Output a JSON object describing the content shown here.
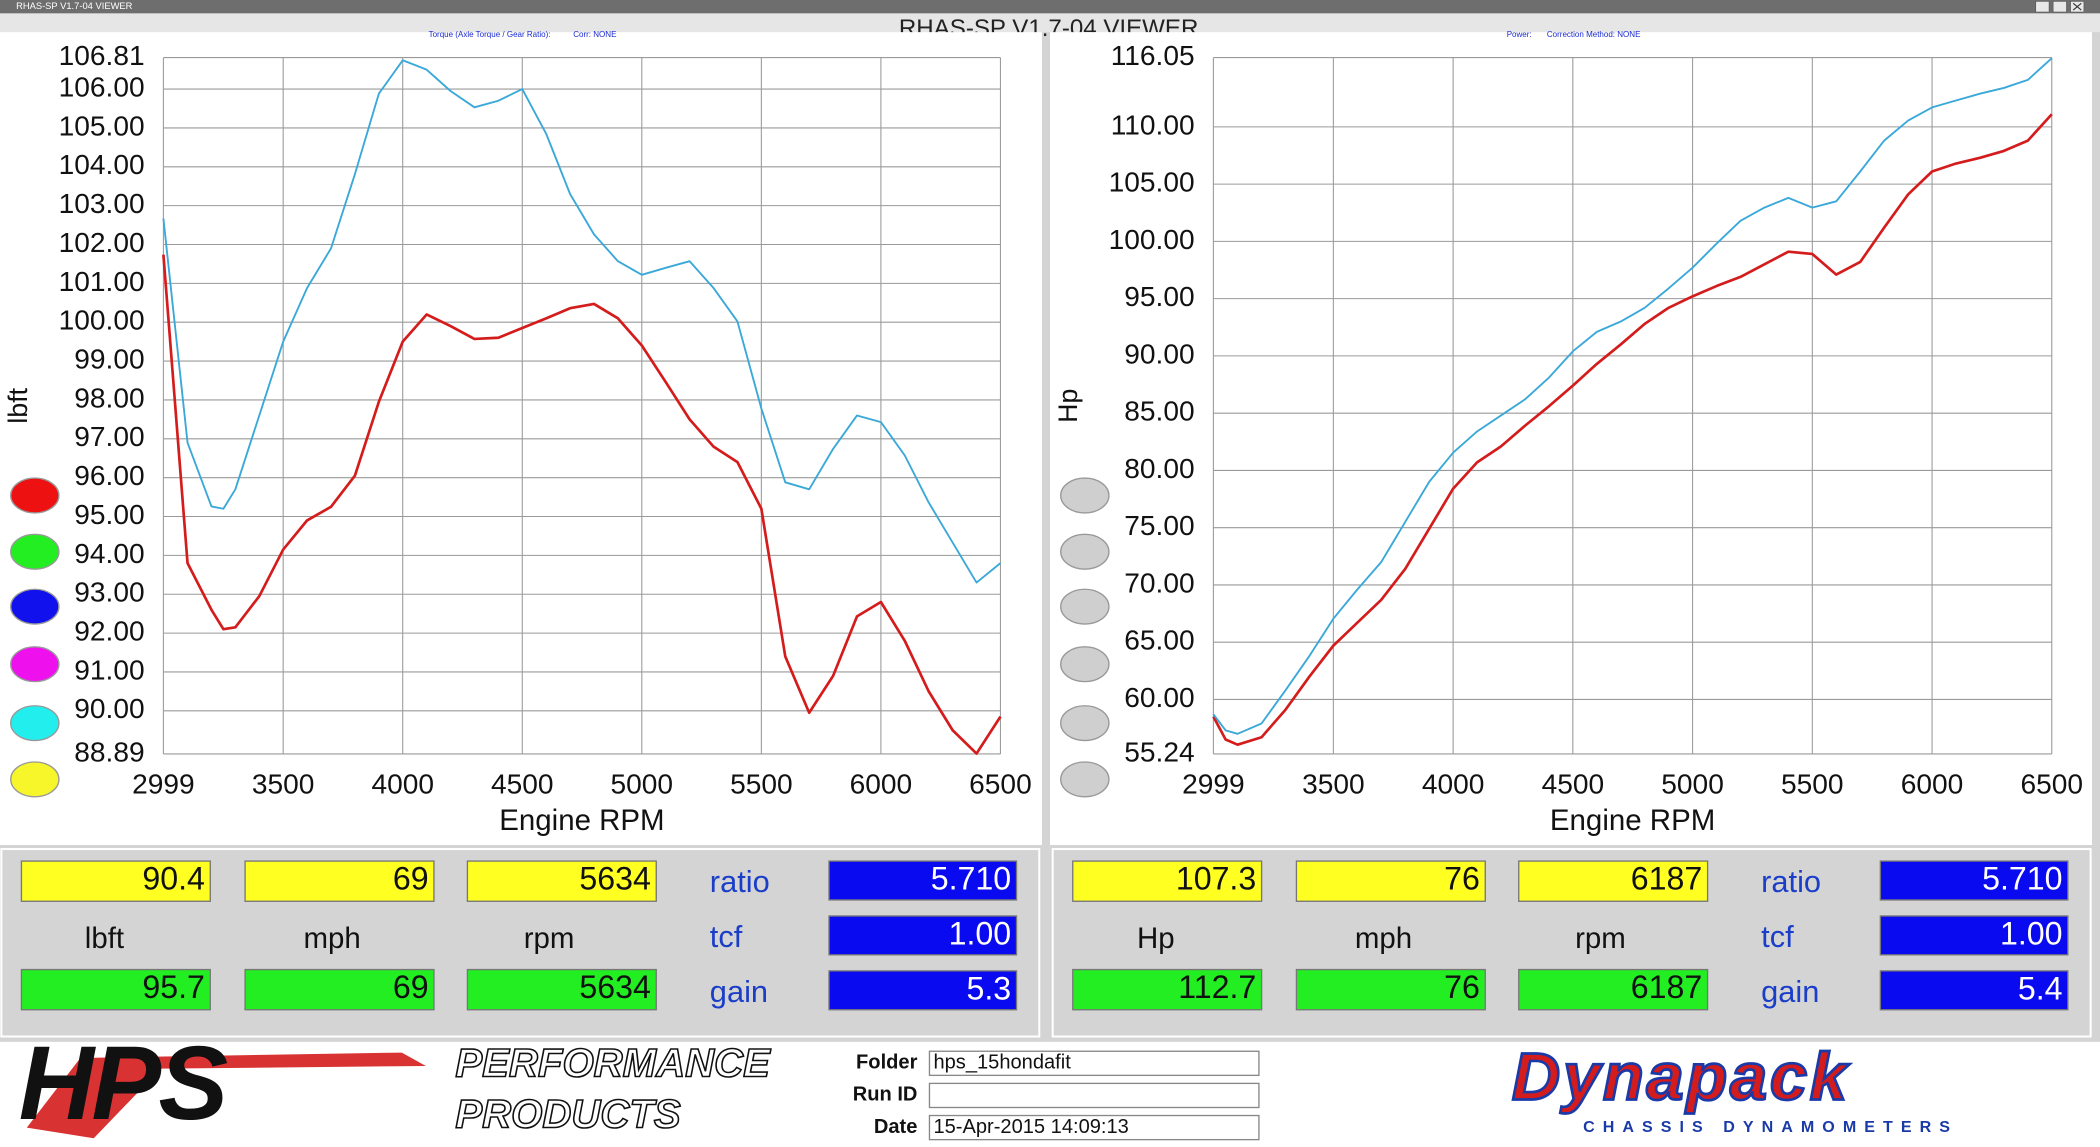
{
  "window": {
    "title": "RHAS-SP V1.7-04  VIEWER"
  },
  "app_title": "RHAS-SP V1.7-04  VIEWER",
  "chart_data": [
    {
      "type": "line",
      "header": [
        "Torque (Axle Torque / Gear Ratio):",
        "Corr: NONE"
      ],
      "y_label": "lbft",
      "x_label": "Engine RPM",
      "x": [
        2999,
        3100,
        3200,
        3250,
        3300,
        3400,
        3500,
        3600,
        3700,
        3800,
        3900,
        4000,
        4100,
        4200,
        4300,
        4400,
        4500,
        4600,
        4700,
        4800,
        4900,
        5000,
        5100,
        5200,
        5300,
        5400,
        5500,
        5600,
        5700,
        5800,
        5900,
        6000,
        6100,
        6200,
        6300,
        6400,
        6500
      ],
      "series": [
        {
          "color": "#d41c1c",
          "values": [
            101.74,
            93.8,
            92.6,
            92.1,
            92.15,
            92.95,
            94.15,
            94.9,
            95.25,
            96.05,
            97.95,
            99.5,
            100.2,
            99.9,
            99.57,
            99.6,
            99.85,
            100.1,
            100.36,
            100.47,
            100.1,
            99.4,
            98.46,
            97.5,
            96.8,
            96.4,
            95.2,
            91.4,
            89.95,
            90.9,
            92.43,
            92.8,
            91.8,
            90.5,
            89.5,
            88.9,
            89.85
          ]
        },
        {
          "color": "#3aa8d8",
          "values": [
            102.67,
            96.9,
            95.26,
            95.2,
            95.7,
            97.6,
            99.5,
            100.88,
            101.9,
            103.81,
            105.88,
            106.74,
            106.5,
            105.95,
            105.53,
            105.7,
            106.0,
            104.85,
            103.3,
            102.26,
            101.57,
            101.22,
            101.4,
            101.57,
            100.88,
            100.02,
            97.78,
            95.88,
            95.7,
            96.74,
            97.6,
            97.43,
            96.57,
            95.36,
            94.33,
            93.3,
            93.8
          ]
        }
      ],
      "xlim": [
        2999,
        6500
      ],
      "xticks": [
        2999,
        3500,
        4000,
        4500,
        5000,
        5500,
        6000,
        6500
      ],
      "ylim": [
        88.89,
        106.81
      ],
      "yticks": [
        88.89,
        {
          "value": 90,
          "label": "90.00"
        },
        {
          "value": 91,
          "label": "91.00"
        },
        {
          "value": 92,
          "label": "92.00"
        },
        {
          "value": 93,
          "label": "93.00"
        },
        {
          "value": 94,
          "label": "94.00"
        },
        {
          "value": 95,
          "label": "95.00"
        },
        {
          "value": 96,
          "label": "96.00"
        },
        {
          "value": 97,
          "label": "97.00"
        },
        {
          "value": 98,
          "label": "98.00"
        },
        {
          "value": 99,
          "label": "99.00"
        },
        {
          "value": 100,
          "label": "100.00"
        },
        {
          "value": 101,
          "label": "101.00"
        },
        {
          "value": 102,
          "label": "102.00"
        },
        {
          "value": 103,
          "label": "103.00"
        },
        {
          "value": 104,
          "label": "104.00"
        },
        {
          "value": 105,
          "label": "105.00"
        },
        {
          "value": 106,
          "label": "106.00"
        },
        106.81
      ],
      "grid": true
    },
    {
      "type": "line",
      "header": [
        "Power:",
        "Correction Method: NONE"
      ],
      "y_label": "Hp",
      "x_label": "Engine RPM",
      "x": [
        2999,
        3050,
        3100,
        3200,
        3300,
        3400,
        3500,
        3600,
        3700,
        3800,
        3900,
        4000,
        4100,
        4200,
        4300,
        4400,
        4500,
        4600,
        4700,
        4800,
        4900,
        5000,
        5100,
        5200,
        5300,
        5400,
        5500,
        5600,
        5700,
        5800,
        5900,
        6000,
        6100,
        6200,
        6300,
        6400,
        6500
      ],
      "series": [
        {
          "color": "#d41c1c",
          "values": [
            58.5,
            56.5,
            56.05,
            56.7,
            59.1,
            62.0,
            64.7,
            66.7,
            68.7,
            71.4,
            74.9,
            78.4,
            80.7,
            82.1,
            83.9,
            85.6,
            87.4,
            89.3,
            91.0,
            92.8,
            94.2,
            95.2,
            96.1,
            96.9,
            98.0,
            99.1,
            98.9,
            97.1,
            98.2,
            101.2,
            104.1,
            106.1,
            106.8,
            107.3,
            107.9,
            108.8,
            111.1
          ]
        },
        {
          "color": "#3aa8d8",
          "values": [
            58.7,
            57.3,
            57.0,
            57.9,
            60.8,
            63.8,
            67.05,
            69.6,
            72.0,
            75.5,
            79.0,
            81.55,
            83.4,
            84.8,
            86.2,
            88.1,
            90.4,
            92.1,
            93.0,
            94.2,
            95.9,
            97.7,
            99.8,
            101.8,
            102.95,
            103.8,
            102.95,
            103.5,
            106.1,
            108.8,
            110.55,
            111.7,
            112.3,
            112.9,
            113.4,
            114.1,
            116.0
          ]
        }
      ],
      "xlim": [
        2999,
        6500
      ],
      "xticks": [
        2999,
        3500,
        4000,
        4500,
        5000,
        5500,
        6000,
        6500
      ],
      "ylim": [
        55.24,
        116.05
      ],
      "yticks": [
        55.24,
        {
          "value": 60,
          "label": "60.00"
        },
        {
          "value": 65,
          "label": "65.00"
        },
        {
          "value": 70,
          "label": "70.00"
        },
        {
          "value": 75,
          "label": "75.00"
        },
        {
          "value": 80,
          "label": "80.00"
        },
        {
          "value": 85,
          "label": "85.00"
        },
        {
          "value": 90,
          "label": "90.00"
        },
        {
          "value": 95,
          "label": "95.00"
        },
        {
          "value": 100,
          "label": "100.00"
        },
        {
          "value": 105,
          "label": "105.00"
        },
        {
          "value": 110,
          "label": "110.00"
        },
        116.05
      ],
      "grid": true
    }
  ],
  "readouts": [
    {
      "top": [
        "90.4",
        "69",
        "5634"
      ],
      "units": [
        "lbft",
        "mph",
        "rpm"
      ],
      "bottom": [
        "95.7",
        "69",
        "5634"
      ],
      "params": [
        "ratio",
        "tcf",
        "gain"
      ],
      "param_values": [
        "5.710",
        "1.00",
        "5.3"
      ]
    },
    {
      "top": [
        "107.3",
        "76",
        "6187"
      ],
      "units": [
        "Hp",
        "mph",
        "rpm"
      ],
      "bottom": [
        "112.7",
        "76",
        "6187"
      ],
      "params": [
        "ratio",
        "tcf",
        "gain"
      ],
      "param_values": [
        "5.710",
        "1.00",
        "5.4"
      ]
    }
  ],
  "footer": {
    "hps_logo": "HPS",
    "hps_tagline": [
      "PERFORMANCE",
      "PRODUCTS"
    ],
    "fields": [
      {
        "label": "Folder",
        "value": "hps_15hondafit"
      },
      {
        "label": "Run ID"
      },
      {
        "label": "Date",
        "value": "15-Apr-2015  14:09:13"
      }
    ],
    "dynapack_logo": "Dynapack",
    "dynapack_tagline": "CHASSIS  DYNAMOMETERS"
  }
}
